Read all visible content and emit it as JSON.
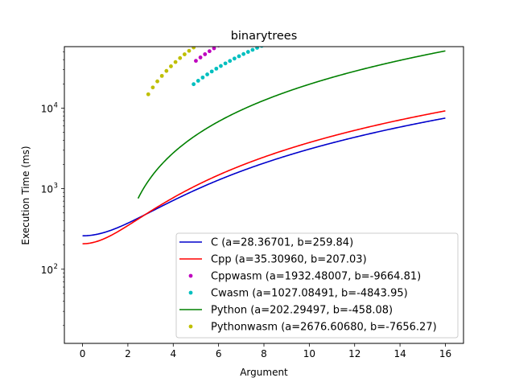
{
  "chart_data": {
    "type": "line",
    "title": "binarytrees",
    "xlabel": "Argument",
    "ylabel": "Execution Time (ms)",
    "xlim": [
      -0.8,
      16.8
    ],
    "ylim": [
      12,
      58000
    ],
    "y_scale": "log",
    "x_ticks": [
      0,
      2,
      4,
      6,
      8,
      10,
      12,
      14,
      16
    ],
    "y_ticks": [
      {
        "value": 100,
        "base": "10",
        "exp": "2"
      },
      {
        "value": 1000,
        "base": "10",
        "exp": "3"
      },
      {
        "value": 10000,
        "base": "10",
        "exp": "4"
      }
    ],
    "legend_position": "lower-right",
    "model": "y = a*x^2 + b",
    "series": [
      {
        "name": "C (a=28.36701, b=259.84)",
        "a": 28.36701,
        "b": 259.84,
        "style": "line",
        "color": "#0000cc",
        "x_range": [
          0,
          16
        ]
      },
      {
        "name": "Cpp (a=35.30960, b=207.03)",
        "a": 35.3096,
        "b": 207.03,
        "style": "line",
        "color": "#ff0000",
        "x_range": [
          0,
          16
        ]
      },
      {
        "name": "Cppwasm (a=1932.48007, b=-9664.81)",
        "a": 1932.48007,
        "b": -9664.81,
        "style": "points",
        "color": "#bf00bf",
        "x_range": [
          5,
          16
        ]
      },
      {
        "name": "Cwasm (a=1027.08491, b=-4843.95)",
        "a": 1027.08491,
        "b": -4843.95,
        "style": "points",
        "color": "#00bfbf",
        "x_range": [
          4.9,
          16
        ]
      },
      {
        "name": "Python (a=202.29497, b=-458.08)",
        "a": 202.29497,
        "b": -458.08,
        "style": "line",
        "color": "#008000",
        "x_range": [
          2.45,
          16
        ]
      },
      {
        "name": "Pythonwasm (a=2676.60680, b=-7656.27)",
        "a": 2676.6068,
        "b": -7656.27,
        "style": "points",
        "color": "#bfbf00",
        "x_range": [
          2.9,
          16
        ]
      }
    ]
  }
}
